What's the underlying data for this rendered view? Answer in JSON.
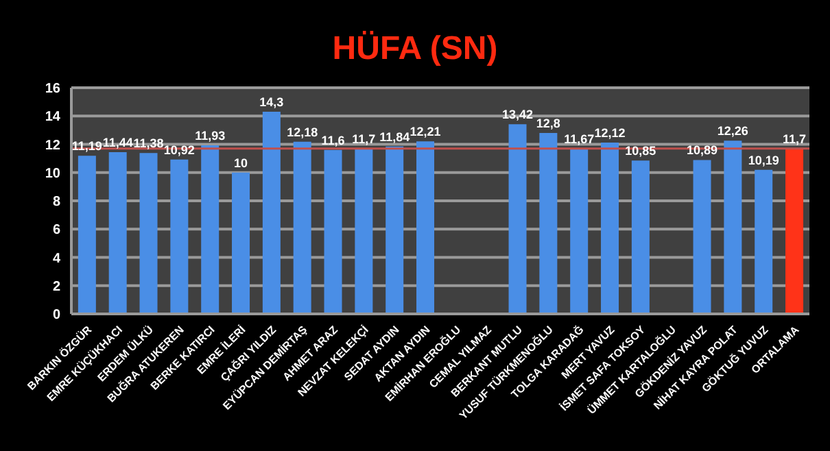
{
  "chart_data": {
    "type": "bar",
    "title": "HÜFA (SN)",
    "categories": [
      "BARKIN ÖZGÜR",
      "EMRE KÜÇÜKHACI",
      "ERDEM ÜLKÜ",
      "BUĞRA ATUKEREN",
      "BERKE KATIRCI",
      "EMRE İLERİ",
      "ÇAĞRI YILDIZ",
      "EYÜPCAN DEMİRTAŞ",
      "AHMET ARAZ",
      "NEVZAT KELEKÇİ",
      "SEDAT AYDIN",
      "AKTAN AYDIN",
      "EMİRHAN EROĞLU",
      "CEMAL YILMAZ",
      "BERKANT MUTLU",
      "YUSUF TÜRKMENOĞLU",
      "TOLGA KARADAĞ",
      "MERT YAVUZ",
      "İSMET SAFA TOKSOY",
      "ÜMMET KARTALOĞLU",
      "GÖKDENİZ YAVUZ",
      "NİHAT KAYRA POLAT",
      "GÖKTUĞ YUVUZ",
      "ORTALAMA"
    ],
    "values": [
      11.19,
      11.44,
      11.38,
      10.92,
      11.93,
      10,
      14.3,
      12.18,
      11.6,
      11.7,
      11.84,
      12.21,
      null,
      null,
      13.42,
      12.8,
      11.67,
      12.12,
      10.85,
      null,
      10.89,
      12.26,
      10.19,
      11.7
    ],
    "value_labels": [
      "11,19",
      "11,44",
      "11,38",
      "10,92",
      "11,93",
      "10",
      "14,3",
      "12,18",
      "11,6",
      "11,7",
      "11,84",
      "12,21",
      null,
      null,
      "13,42",
      "12,8",
      "11,67",
      "12,12",
      "10,85",
      null,
      "10,89",
      "12,26",
      "10,19",
      "11,7"
    ],
    "colors": [
      "#4a8ee6",
      "#4a8ee6",
      "#4a8ee6",
      "#4a8ee6",
      "#4a8ee6",
      "#4a8ee6",
      "#4a8ee6",
      "#4a8ee6",
      "#4a8ee6",
      "#4a8ee6",
      "#4a8ee6",
      "#4a8ee6",
      "#4a8ee6",
      "#4a8ee6",
      "#4a8ee6",
      "#4a8ee6",
      "#4a8ee6",
      "#4a8ee6",
      "#4a8ee6",
      "#4a8ee6",
      "#4a8ee6",
      "#4a8ee6",
      "#4a8ee6",
      "#ff3318"
    ],
    "ylim": [
      0,
      16
    ],
    "yticks": [
      0,
      2,
      4,
      6,
      8,
      10,
      12,
      14,
      16
    ],
    "grid": "y",
    "ref_lines": [
      {
        "axis": "y",
        "value": 11.7,
        "color": "#c0504d"
      }
    ],
    "legend": false
  }
}
